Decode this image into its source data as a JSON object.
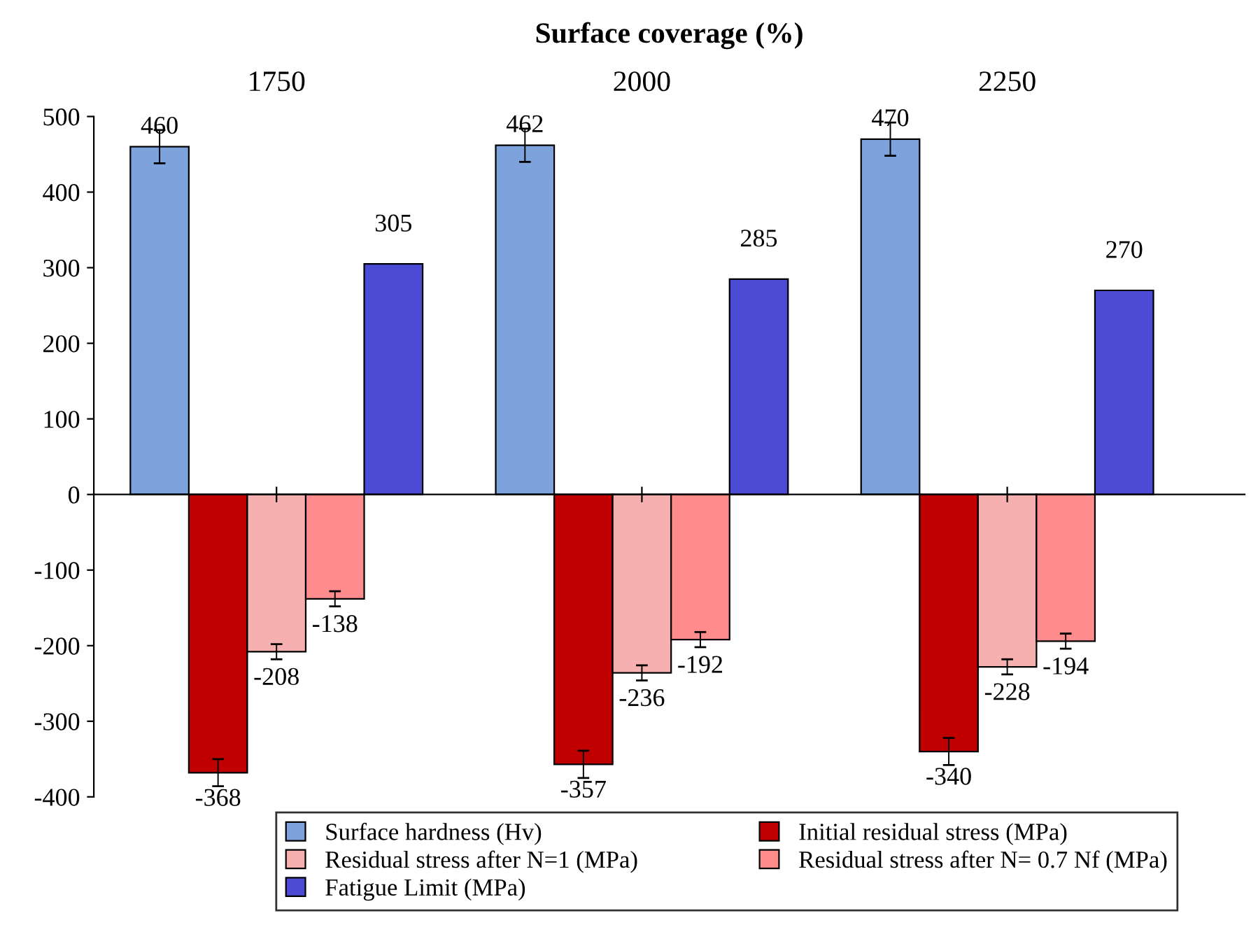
{
  "chart_data": {
    "type": "bar",
    "title": "Surface coverage (%)",
    "categories": [
      "1750",
      "2000",
      "2250"
    ],
    "series": [
      {
        "name": "Surface hardness (Hv)",
        "color": "#7da2dc",
        "values": [
          460,
          462,
          470
        ],
        "errors": [
          22,
          22,
          22
        ]
      },
      {
        "name": "Initial residual stress (MPa)",
        "color": "#c00000",
        "values": [
          -368,
          -357,
          -340
        ],
        "errors": [
          18,
          18,
          18
        ]
      },
      {
        "name": "Residual stress after N=1 (MPa)",
        "color": "#f7b0b0",
        "values": [
          -208,
          -236,
          -228
        ],
        "errors": [
          10,
          10,
          10
        ]
      },
      {
        "name": "Residual stress after N= 0.7 Nf (MPa)",
        "color": "#ff8c8c",
        "values": [
          -138,
          -192,
          -194
        ],
        "errors": [
          10,
          10,
          10
        ]
      },
      {
        "name": "Fatigue Limit (MPa)",
        "color": "#4b4bd6",
        "values": [
          305,
          285,
          270
        ]
      }
    ],
    "ylim": [
      -400,
      500
    ],
    "yticks": [
      -400,
      -300,
      -200,
      -100,
      0,
      100,
      200,
      300,
      400,
      500
    ],
    "data_labels": true,
    "legend": "bottom"
  }
}
